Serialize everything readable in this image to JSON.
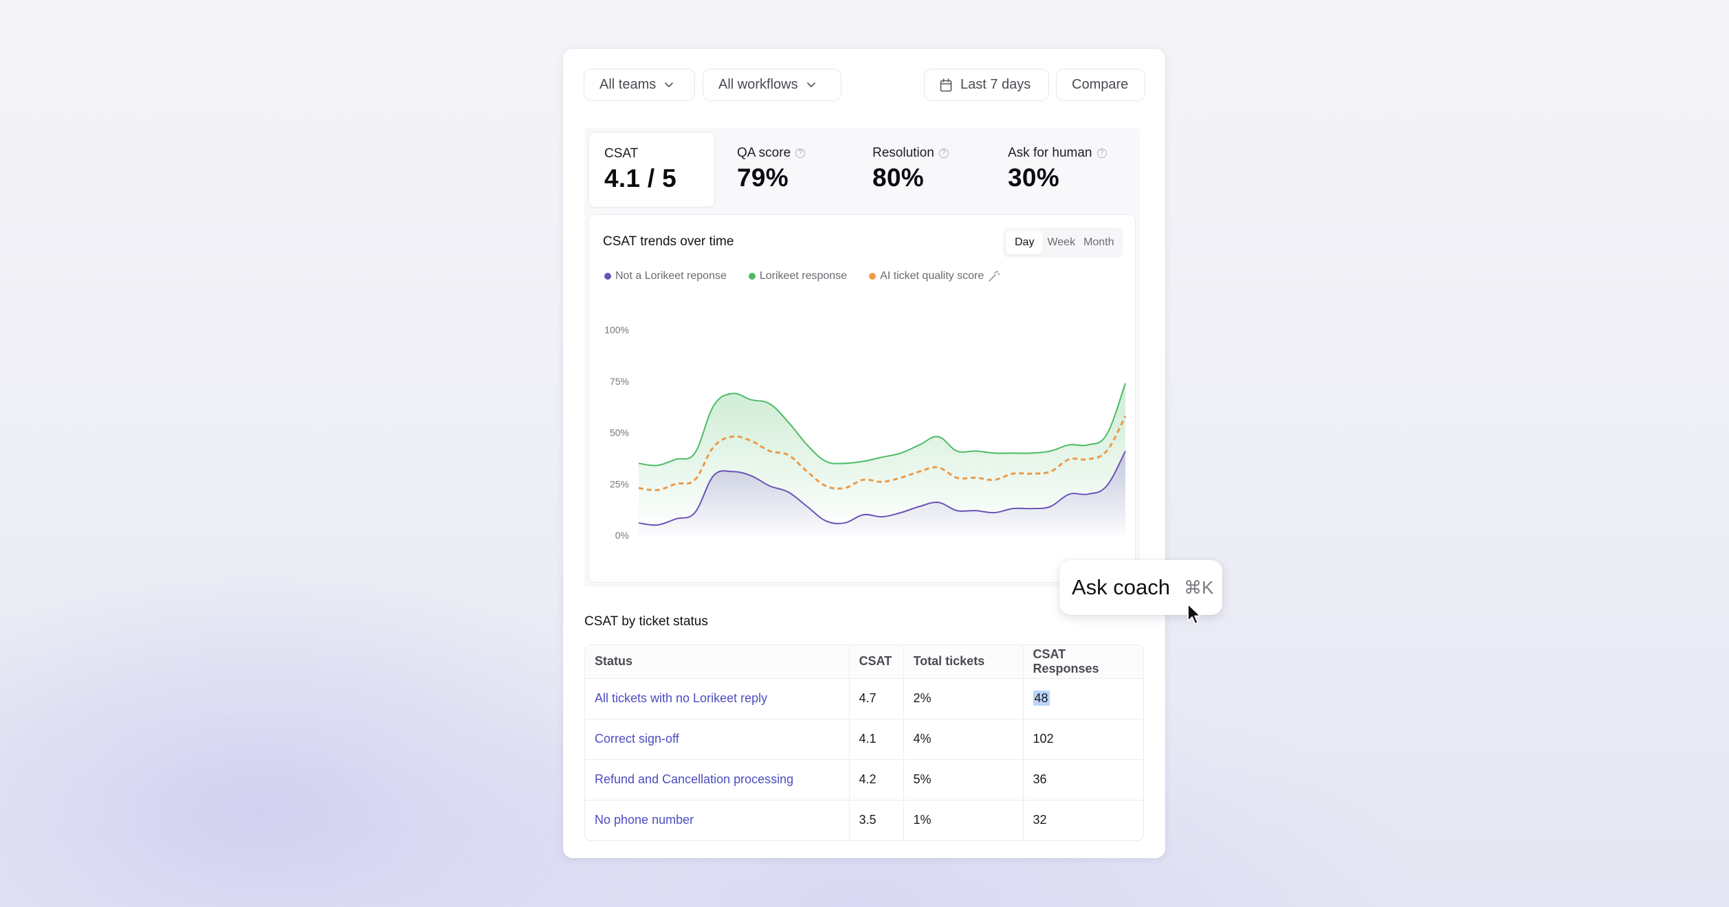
{
  "toolbar": {
    "teams_label": "All teams",
    "workflows_label": "All workflows",
    "date_range_label": "Last 7 days",
    "compare_label": "Compare"
  },
  "kpis": [
    {
      "label": "CSAT",
      "value": "4.1 / 5",
      "help": false,
      "active": true
    },
    {
      "label": "QA score",
      "value": "79%",
      "help": true,
      "active": false
    },
    {
      "label": "Resolution",
      "value": "80%",
      "help": true,
      "active": false
    },
    {
      "label": "Ask for human",
      "value": "30%",
      "help": true,
      "active": false
    }
  ],
  "chart": {
    "title": "CSAT trends over time",
    "granularity": {
      "options": [
        "Day",
        "Week",
        "Month"
      ],
      "selected": "Day"
    },
    "legend": [
      {
        "label": "Not a Lorikeet reponse",
        "color": "#6b52b8"
      },
      {
        "label": "Lorikeet response",
        "color": "#4cbb64"
      },
      {
        "label": "AI ticket quality score",
        "color": "#ec9a48",
        "icon": "magic-wand-icon"
      }
    ]
  },
  "chart_data": {
    "type": "area",
    "title": "CSAT trends over time",
    "xlabel": "",
    "ylabel": "",
    "ylim": [
      0,
      100
    ],
    "y_ticks": [
      "0%",
      "25%",
      "50%",
      "75%",
      "100%"
    ],
    "grid": false,
    "legend_position": "top-left",
    "x": [
      0,
      1,
      2,
      3,
      4,
      5,
      6,
      7,
      8,
      9,
      10,
      11,
      12,
      13,
      14,
      15,
      16,
      17,
      18,
      19,
      20,
      21,
      22,
      23,
      24,
      25,
      26
    ],
    "series": [
      {
        "name": "Not a Lorikeet reponse",
        "style": "area-line",
        "color": "#6b52b8",
        "values": [
          6,
          5,
          8,
          11,
          29,
          31,
          29,
          24,
          21,
          14,
          7,
          6,
          10,
          9,
          11,
          14,
          16,
          12,
          12,
          11,
          13,
          13,
          14,
          20,
          20,
          24,
          41
        ]
      },
      {
        "name": "Lorikeet response",
        "style": "area-line",
        "color": "#4cbb64",
        "values": [
          35,
          34,
          37,
          40,
          63,
          69,
          66,
          64,
          55,
          44,
          36,
          35,
          36,
          38,
          40,
          44,
          48,
          41,
          41,
          40,
          40,
          40,
          41,
          44,
          44,
          49,
          74
        ]
      },
      {
        "name": "AI ticket quality score",
        "style": "dashed-line",
        "color": "#ec9a48",
        "values": [
          23,
          22,
          25,
          27,
          43,
          48,
          46,
          41,
          39,
          31,
          24,
          23,
          27,
          26,
          28,
          31,
          33,
          28,
          28,
          27,
          30,
          30,
          31,
          37,
          37,
          41,
          58
        ]
      }
    ]
  },
  "status_table": {
    "title": "CSAT by ticket status",
    "columns": [
      "Status",
      "CSAT",
      "Total tickets",
      "CSAT Responses"
    ],
    "rows": [
      {
        "status": "All tickets with no Lorikeet reply",
        "csat": "4.7",
        "total": "2%",
        "responses": "48"
      },
      {
        "status": "Correct sign-off",
        "csat": "4.1",
        "total": "4%",
        "responses": "102"
      },
      {
        "status": "Refund and Cancellation processing",
        "csat": "4.2",
        "total": "5%",
        "responses": "36"
      },
      {
        "status": "No phone number",
        "csat": "3.5",
        "total": "1%",
        "responses": "32"
      }
    ]
  },
  "coach": {
    "label": "Ask coach",
    "shortcut": "⌘K"
  },
  "colors": {
    "accent_link": "#4c4cbf",
    "purple": "#6b52b8",
    "green": "#4cbb64",
    "orange": "#ec9a48"
  }
}
